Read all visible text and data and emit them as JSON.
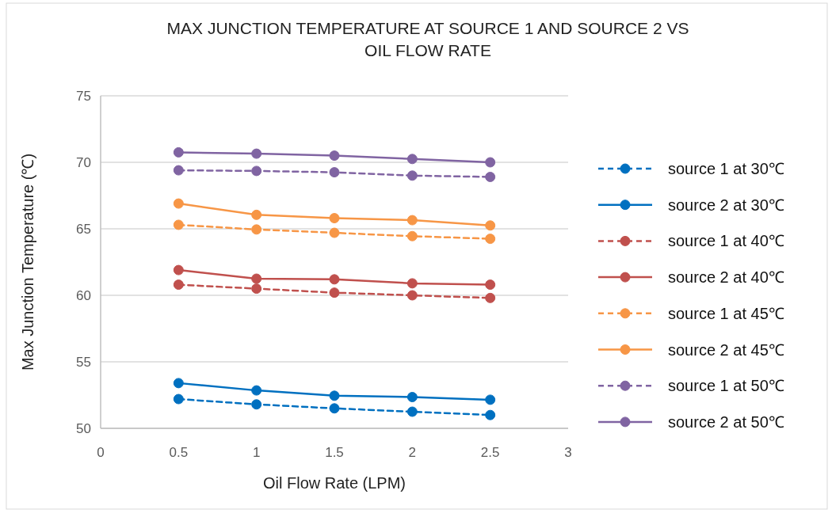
{
  "chart_data": {
    "type": "line",
    "title": "MAX JUNCTION TEMPERATURE AT SOURCE 1 AND SOURCE 2 VS OIL FLOW RATE",
    "xlabel": "Oil Flow Rate (LPM)",
    "ylabel": "Max Junction Temperature  (℃)",
    "x": [
      0.5,
      1,
      1.5,
      2,
      2.5
    ],
    "xlim": [
      0,
      3
    ],
    "xticks": [
      0,
      0.5,
      1,
      1.5,
      2,
      2.5,
      3
    ],
    "ylim": [
      50,
      75
    ],
    "yticks": [
      50,
      55,
      60,
      65,
      70,
      75
    ],
    "grid": "y",
    "legend": "right",
    "marker": "circle",
    "series": [
      {
        "name": "source 1 at 30℃",
        "color": "#0070c0",
        "line_style": "dashed",
        "values": [
          52.2,
          51.8,
          51.5,
          51.25,
          51.0
        ]
      },
      {
        "name": "source 2 at 30℃",
        "color": "#0070c0",
        "line_style": "solid",
        "values": [
          53.4,
          52.85,
          52.45,
          52.35,
          52.15
        ]
      },
      {
        "name": "source 1 at 40℃",
        "color": "#c0504d",
        "line_style": "dashed",
        "values": [
          60.8,
          60.5,
          60.2,
          60.0,
          59.8
        ]
      },
      {
        "name": "source 2 at 40℃",
        "color": "#c0504d",
        "line_style": "solid",
        "values": [
          61.9,
          61.25,
          61.2,
          60.9,
          60.8
        ]
      },
      {
        "name": "source 1 at 45℃",
        "color": "#f79646",
        "line_style": "dashed",
        "values": [
          65.3,
          64.95,
          64.7,
          64.45,
          64.25
        ]
      },
      {
        "name": "source 2 at 45℃",
        "color": "#f79646",
        "line_style": "solid",
        "values": [
          66.9,
          66.05,
          65.8,
          65.65,
          65.25
        ]
      },
      {
        "name": "source 1 at 50℃",
        "color": "#8064a2",
        "line_style": "dashed",
        "values": [
          69.4,
          69.35,
          69.25,
          69.0,
          68.9
        ]
      },
      {
        "name": "source 2 at 50℃",
        "color": "#8064a2",
        "line_style": "solid",
        "values": [
          70.75,
          70.65,
          70.5,
          70.25,
          70.0
        ]
      }
    ]
  }
}
